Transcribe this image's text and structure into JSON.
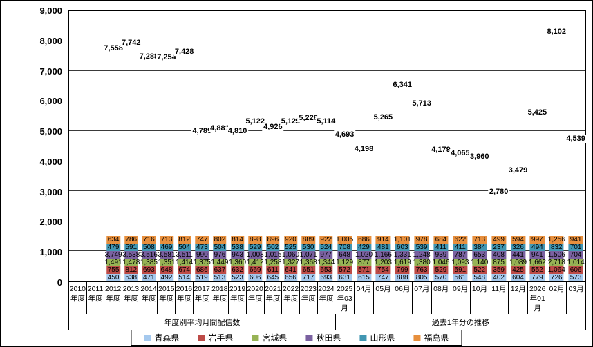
{
  "chart_data": {
    "type": "bar",
    "stacked": true,
    "title": "",
    "xlabel": "",
    "ylabel": "",
    "ylim": [
      0,
      9000
    ],
    "ytick_step": 1000,
    "grid": true,
    "legend_position": "bottom",
    "series_names": [
      "青森県",
      "岩手県",
      "宮城県",
      "秋田県",
      "山形県",
      "福島県"
    ],
    "series_colors": [
      "#a5c9ee",
      "#bd4b47",
      "#97b355",
      "#7a61a0",
      "#4196b2",
      "#e78f3d"
    ],
    "groups": [
      {
        "label": "年度別平均月間配信数",
        "categories": [
          {
            "label_lines": [
              "2010",
              "年度"
            ],
            "total": null,
            "values": [
              0,
              0,
              0,
              0,
              0,
              0
            ]
          },
          {
            "label_lines": [
              "2011",
              "年度"
            ],
            "total": null,
            "values": [
              0,
              0,
              0,
              0,
              0,
              0
            ]
          },
          {
            "label_lines": [
              "2012",
              "年度"
            ],
            "total": 7558,
            "values": [
              450,
              755,
              1491,
              3749,
              479,
              634
            ]
          },
          {
            "label_lines": [
              "2013",
              "年度"
            ],
            "total": 7742,
            "values": [
              538,
              812,
              1478,
              3538,
              591,
              786
            ]
          },
          {
            "label_lines": [
              "2014",
              "年度"
            ],
            "total": 7288,
            "values": [
              471,
              693,
              1385,
              3516,
              508,
              716
            ]
          },
          {
            "label_lines": [
              "2015",
              "年度"
            ],
            "total": 7254,
            "values": [
              492,
              648,
              1351,
              3581,
              469,
              713
            ]
          },
          {
            "label_lines": [
              "2016",
              "年度"
            ],
            "total": 7428,
            "values": [
              514,
              674,
              1414,
              3511,
              504,
              812
            ]
          },
          {
            "label_lines": [
              "2017",
              "年度"
            ],
            "total": 4789,
            "values": [
              519,
              686,
              1375,
              990,
              473,
              747
            ]
          },
          {
            "label_lines": [
              "2018",
              "年度"
            ],
            "total": 4881,
            "values": [
              513,
              637,
              1449,
              976,
              504,
              802
            ]
          },
          {
            "label_lines": [
              "2019",
              "年度"
            ],
            "total": 4810,
            "values": [
              523,
              632,
              1360,
              943,
              538,
              814
            ]
          },
          {
            "label_lines": [
              "2020",
              "年度"
            ],
            "total": 5122,
            "values": [
              606,
              669,
              1412,
              1008,
              529,
              898
            ]
          },
          {
            "label_lines": [
              "2021",
              "年度"
            ],
            "total": 4926,
            "values": [
              645,
              611,
              1258,
              1015,
              502,
              896
            ]
          },
          {
            "label_lines": [
              "2022",
              "年度"
            ],
            "total": 5129,
            "values": [
              656,
              641,
              1327,
              1060,
              525,
              920
            ]
          },
          {
            "label_lines": [
              "2023",
              "年度"
            ],
            "total": 5226,
            "values": [
              717,
              651,
              1368,
              1071,
              530,
              889
            ]
          },
          {
            "label_lines": [
              "2024",
              "年度"
            ],
            "total": 5114,
            "values": [
              693,
              653,
              1344,
              977,
              524,
              922
            ]
          }
        ]
      },
      {
        "label": "過去1年分の推移",
        "categories": [
          {
            "label_lines": [
              "2025",
              "年03",
              "月"
            ],
            "total": 4693,
            "values": [
              631,
              572,
              1129,
              648,
              708,
              1005
            ]
          },
          {
            "label_lines": [
              "04月"
            ],
            "total": 4198,
            "values": [
              615,
              571,
              877,
              1020,
              429,
              686
            ]
          },
          {
            "label_lines": [
              "05月"
            ],
            "total": 5265,
            "values": [
              747,
              754,
              1203,
              1166,
              481,
              914
            ]
          },
          {
            "label_lines": [
              "06月"
            ],
            "total": 6341,
            "values": [
              888,
              799,
              1619,
              1331,
              603,
              1101
            ]
          },
          {
            "label_lines": [
              "07月"
            ],
            "total": 5713,
            "values": [
              805,
              763,
              1380,
              1248,
              539,
              978
            ]
          },
          {
            "label_lines": [
              "08月"
            ],
            "total": 4179,
            "values": [
              570,
              529,
              1046,
              939,
              411,
              684
            ]
          },
          {
            "label_lines": [
              "09月"
            ],
            "total": 4065,
            "values": [
              561,
              591,
              1093,
              787,
              411,
              622
            ]
          },
          {
            "label_lines": [
              "10月"
            ],
            "total": 3960,
            "values": [
              548,
              522,
              1140,
              653,
              384,
              713
            ]
          },
          {
            "label_lines": [
              "11月"
            ],
            "total": 2780,
            "values": [
              402,
              359,
              875,
              408,
              237,
              499
            ]
          },
          {
            "label_lines": [
              "12月"
            ],
            "total": 3479,
            "values": [
              604,
              425,
              1089,
              441,
              326,
              594
            ]
          },
          {
            "label_lines": [
              "2026",
              "年01",
              "月"
            ],
            "total": 5425,
            "values": [
              779,
              552,
              1662,
              941,
              494,
              997
            ]
          },
          {
            "label_lines": [
              "02月"
            ],
            "total": 8102,
            "values": [
              726,
              1064,
              2718,
              1506,
              832,
              1256
            ]
          },
          {
            "label_lines": [
              "03月"
            ],
            "total": 4539,
            "values": [
              573,
              606,
              1014,
              704,
              701,
              941
            ]
          }
        ]
      }
    ]
  }
}
